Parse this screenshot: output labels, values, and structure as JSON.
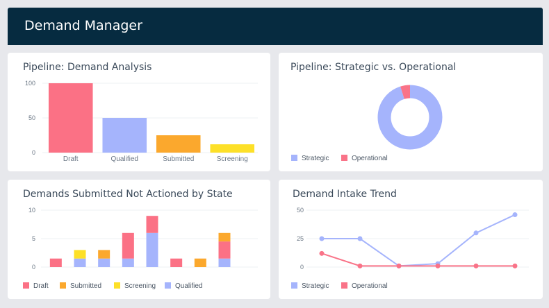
{
  "app": {
    "title": "Demand Manager"
  },
  "colors": {
    "draft": "#fb7185",
    "qualified": "#a5b4fc",
    "submitted": "#fba82d",
    "screening": "#fde028",
    "strategic": "#a5b4fc",
    "operational": "#f97388",
    "header_bg": "#062b40"
  },
  "panels": {
    "demand_analysis": {
      "title": "Pipeline: Demand Analysis"
    },
    "strategic_vs_operational": {
      "title": "Pipeline: Strategic vs. Operational"
    },
    "not_actioned": {
      "title": "Demands Submitted Not Actioned by State"
    },
    "intake_trend": {
      "title": "Demand Intake Trend"
    }
  },
  "chart_data": [
    {
      "type": "bar",
      "title": "Pipeline: Demand Analysis",
      "categories": [
        "Draft",
        "Qualified",
        "Submitted",
        "Screening"
      ],
      "values": [
        100,
        50,
        25,
        12
      ],
      "ylim": [
        0,
        100
      ],
      "yticks": [
        "100",
        "50",
        "0"
      ],
      "colors": [
        "#fb7185",
        "#a5b4fc",
        "#fba82d",
        "#fde028"
      ]
    },
    {
      "type": "pie",
      "title": "Pipeline: Strategic vs. Operational",
      "donut": true,
      "series": [
        {
          "name": "Strategic",
          "value": 95,
          "color": "#a5b4fc"
        },
        {
          "name": "Operational",
          "value": 5,
          "color": "#f97388"
        }
      ],
      "legend": [
        "Strategic",
        "Operational"
      ]
    },
    {
      "type": "bar",
      "stacked": true,
      "title": "Demands Submitted Not Actioned by State",
      "categories": [
        "",
        "",
        "",
        "",
        "",
        "",
        "",
        "",
        ""
      ],
      "ylim": [
        0,
        10
      ],
      "yticks": [
        "10",
        "5",
        "0"
      ],
      "series": [
        {
          "name": "Draft",
          "color": "#fb7185",
          "values": [
            1.5,
            0,
            0,
            4.5,
            3,
            1.5,
            0,
            3,
            0
          ]
        },
        {
          "name": "Submitted",
          "color": "#fba82d",
          "values": [
            0,
            0,
            1.5,
            0,
            0,
            0,
            1.5,
            1.5,
            0
          ]
        },
        {
          "name": "Screening",
          "color": "#fde028",
          "values": [
            0,
            1.5,
            0,
            0,
            0,
            0,
            0,
            0,
            0
          ]
        },
        {
          "name": "Qualified",
          "color": "#a5b4fc",
          "values": [
            0,
            1.5,
            1.5,
            1.5,
            6,
            0,
            0,
            1.5,
            0
          ]
        }
      ],
      "legend": [
        "Draft",
        "Submitted",
        "Screening",
        "Qualified"
      ]
    },
    {
      "type": "line",
      "title": "Demand Intake Trend",
      "x": [
        1,
        2,
        3,
        4,
        5,
        6,
        7
      ],
      "ylim": [
        0,
        50
      ],
      "yticks": [
        "50",
        "25",
        "0"
      ],
      "series": [
        {
          "name": "Strategic",
          "color": "#a5b4fc",
          "values": [
            25,
            25,
            1,
            3,
            30,
            46,
            null
          ]
        },
        {
          "name": "Operational",
          "color": "#f97388",
          "values": [
            12,
            1,
            1,
            1,
            1,
            1,
            null
          ]
        }
      ],
      "legend": [
        "Strategic",
        "Operational"
      ]
    }
  ]
}
